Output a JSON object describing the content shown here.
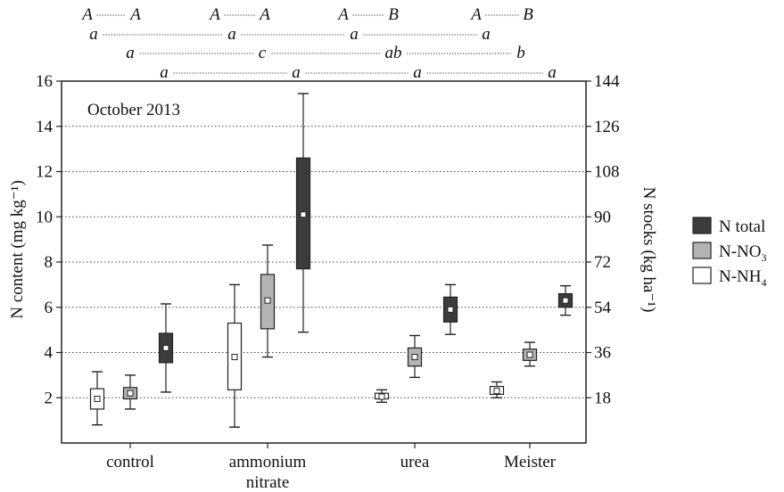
{
  "chart_data": {
    "type": "box",
    "annotation": "October 2013",
    "ylabel": "N content (mg kg⁻¹)",
    "ylabel2": "N stocks (kg ha⁻¹)",
    "ylim": [
      0,
      16
    ],
    "yticks": [
      2,
      4,
      6,
      8,
      10,
      12,
      14,
      16
    ],
    "y2lim": [
      0,
      144
    ],
    "y2ticks": [
      18,
      36,
      54,
      72,
      90,
      108,
      126,
      144
    ],
    "grid": "horizontal dotted",
    "legend_position": "right",
    "categories": [
      {
        "lines": [
          "control"
        ]
      },
      {
        "lines": [
          "ammonium",
          "nitrate"
        ]
      },
      {
        "lines": [
          "urea"
        ]
      },
      {
        "lines": [
          "Meister"
        ]
      }
    ],
    "series": [
      {
        "name": "N-NH₄",
        "name_base": "N-NH",
        "name_sub": "4",
        "fill": "#ffffff",
        "boxes": [
          {
            "min": 0.8,
            "q1": 1.5,
            "median": 1.95,
            "q3": 2.4,
            "max": 3.15
          },
          {
            "min": 0.7,
            "q1": 2.35,
            "median": 3.8,
            "q3": 5.3,
            "max": 7.0
          },
          {
            "min": 1.8,
            "q1": 1.95,
            "median": 2.05,
            "q3": 2.2,
            "max": 2.35
          },
          {
            "min": 2.0,
            "q1": 2.15,
            "median": 2.3,
            "q3": 2.5,
            "max": 2.7
          }
        ]
      },
      {
        "name": "N-NO₃",
        "name_base": "N-NO",
        "name_sub": "3",
        "fill": "#b3b3b3",
        "boxes": [
          {
            "min": 1.5,
            "q1": 1.95,
            "median": 2.2,
            "q3": 2.45,
            "max": 3.0
          },
          {
            "min": 3.8,
            "q1": 5.05,
            "median": 6.3,
            "q3": 7.45,
            "max": 8.75
          },
          {
            "min": 2.9,
            "q1": 3.4,
            "median": 3.8,
            "q3": 4.2,
            "max": 4.75
          },
          {
            "min": 3.4,
            "q1": 3.65,
            "median": 3.9,
            "q3": 4.15,
            "max": 4.45
          }
        ]
      },
      {
        "name": "N total",
        "name_base": "N total",
        "name_sub": "",
        "fill": "#3c3c3c",
        "boxes": [
          {
            "min": 2.25,
            "q1": 3.55,
            "median": 4.2,
            "q3": 4.85,
            "max": 6.15
          },
          {
            "min": 4.9,
            "q1": 7.7,
            "median": 10.1,
            "q3": 12.6,
            "max": 15.45
          },
          {
            "min": 4.8,
            "q1": 5.35,
            "median": 5.9,
            "q3": 6.45,
            "max": 7.0
          },
          {
            "min": 5.65,
            "q1": 6.0,
            "median": 6.3,
            "q3": 6.6,
            "max": 6.95
          }
        ]
      }
    ],
    "legend_order": [
      2,
      1,
      0
    ],
    "significance": [
      {
        "labels": [
          "A",
          "A",
          "A",
          "A",
          "A",
          "B",
          "A",
          "B"
        ]
      },
      {
        "labels": [
          "a",
          "a",
          "a",
          "a"
        ]
      },
      {
        "labels": [
          "a",
          "c",
          "ab",
          "b"
        ]
      },
      {
        "labels": [
          "a",
          "a",
          "a",
          "a"
        ]
      }
    ]
  }
}
